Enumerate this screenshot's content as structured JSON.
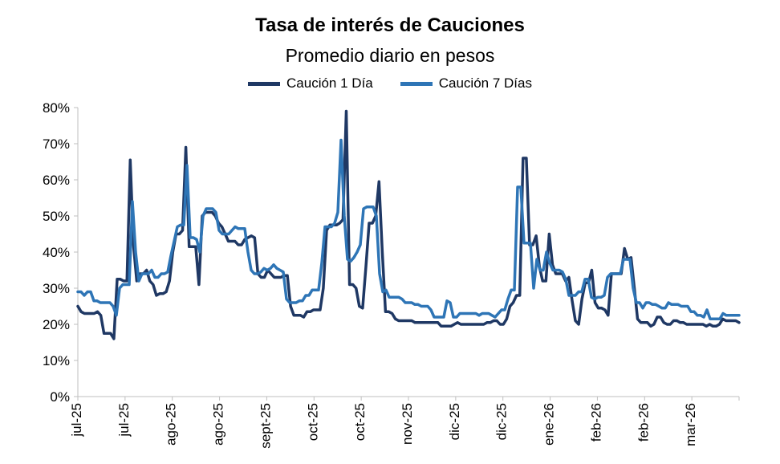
{
  "chart_data": {
    "type": "line",
    "title": "Tasa de interés de Cauciones",
    "subtitle": "Promedio diario en pesos",
    "xlabel": "",
    "ylabel": "",
    "ylim": [
      0,
      80
    ],
    "y_ticks": [
      "0%",
      "10%",
      "20%",
      "30%",
      "40%",
      "50%",
      "60%",
      "70%",
      "80%"
    ],
    "x_tick_labels": [
      "jul-25",
      "jul-25",
      "ago-25",
      "ago-25",
      "sept-25",
      "oct-25",
      "oct-25",
      "nov-25",
      "dic-25",
      "dic-25",
      "ene-26",
      "feb-26",
      "feb-26",
      "mar-26"
    ],
    "grid": false,
    "legend": "top-center",
    "series": [
      {
        "name": "Caución 1 Día",
        "color": "#1f3864",
        "values": [
          25,
          23.5,
          23,
          23,
          23,
          23,
          23.5,
          22.5,
          17.5,
          17.5,
          17.5,
          16,
          32.5,
          32.5,
          32,
          32,
          65.5,
          42,
          32,
          34,
          34,
          35,
          32,
          31,
          28,
          28.5,
          28.5,
          29,
          32,
          40,
          45,
          45,
          46,
          69,
          41.5,
          41.5,
          41.5,
          31,
          50,
          51,
          51,
          51,
          50,
          48,
          47,
          45,
          43,
          43,
          43,
          42,
          42,
          43.5,
          44,
          44.5,
          44,
          34,
          33,
          33,
          35,
          34,
          33,
          33,
          33,
          33.5,
          33.5,
          25,
          22.5,
          22.5,
          22.5,
          22,
          23.5,
          23.5,
          24,
          24,
          24,
          30,
          46,
          47.5,
          47.5,
          47.5,
          48,
          49,
          79,
          31,
          31,
          30,
          25,
          24.5,
          36,
          48,
          48,
          50,
          59.5,
          40,
          23.5,
          23.5,
          23,
          21.5,
          21,
          21,
          21,
          21,
          21,
          20.5,
          20.5,
          20.5,
          20.5,
          20.5,
          20.5,
          20.5,
          20.5,
          19.5,
          19.5,
          19.5,
          19.5,
          20,
          20.5,
          20,
          20,
          20,
          20,
          20,
          20,
          20,
          20,
          20.5,
          20.5,
          21,
          21,
          20,
          20,
          21.5,
          25,
          26,
          28,
          28,
          66,
          66,
          42,
          42,
          44.5,
          36,
          32,
          32,
          45,
          36.5,
          34,
          34,
          34,
          32,
          33,
          26.5,
          21,
          20,
          27,
          31.5,
          31.5,
          35,
          26,
          24.5,
          24.5,
          24,
          22.5,
          34,
          34,
          34,
          34,
          41,
          38,
          38.5,
          30,
          21.5,
          20.5,
          20.5,
          20.5,
          19.5,
          20,
          22,
          22,
          20.5,
          20,
          20,
          21,
          21,
          20.5,
          20.5,
          20,
          20,
          20,
          20,
          20,
          20,
          19.5,
          20,
          19.5,
          19.5,
          20,
          21.5,
          21,
          21,
          21,
          21,
          20.5
        ],
        "values_note": ""
      },
      {
        "name": "Caución 7 Días",
        "color": "#2e75b6",
        "values": [
          29,
          29,
          28,
          29,
          29,
          26.5,
          26.5,
          26,
          26,
          26,
          26,
          25,
          22.5,
          30,
          31,
          31,
          31,
          54,
          40,
          32,
          34,
          34,
          34,
          35,
          33,
          33,
          34,
          34,
          34.5,
          39,
          43,
          47,
          47.5,
          47.5,
          64,
          44,
          44,
          43.5,
          40,
          50,
          52,
          52,
          52,
          51,
          46,
          45,
          45,
          45,
          46,
          47,
          46.5,
          46.5,
          46.5,
          40,
          35,
          34,
          34,
          34.5,
          35.5,
          35,
          35.5,
          36.5,
          35.5,
          35,
          34.5,
          27,
          26,
          26,
          26,
          26.5,
          26.5,
          28,
          28,
          29.5,
          29.5,
          29.5,
          37,
          47,
          47,
          47,
          48,
          51,
          71,
          50,
          38,
          37.5,
          38.5,
          40,
          42,
          52,
          52.5,
          52.5,
          52.5,
          50,
          34,
          29,
          29.5,
          27.5,
          27.5,
          27.5,
          27.5,
          27,
          26,
          26,
          26,
          25.5,
          25.5,
          25,
          25,
          25,
          24,
          22,
          22,
          22,
          22,
          26.5,
          26,
          22,
          22,
          23,
          23,
          23,
          23,
          23,
          23,
          22.5,
          23,
          23,
          23,
          22.5,
          22,
          23,
          24,
          24,
          27,
          29.5,
          29.5,
          58,
          58,
          42.5,
          42.5,
          42.5,
          30,
          38,
          35,
          35,
          40,
          37,
          35,
          35,
          35,
          34.5,
          32.5,
          28,
          28,
          28,
          29,
          29,
          32.5,
          32.5,
          27.5,
          27,
          27.5,
          27.5,
          28,
          33,
          34,
          34,
          34,
          34,
          38,
          38,
          38,
          30,
          26,
          26,
          24.5,
          26,
          26,
          25.5,
          25.5,
          25,
          24.5,
          24.5,
          26,
          25.5,
          25.5,
          25.5,
          25,
          25,
          25,
          23.5,
          23.5,
          22.5,
          22.5,
          22,
          24,
          21.5,
          21.5,
          21.5,
          21.5,
          23,
          22.5,
          22.5,
          22.5,
          22.5,
          22.5
        ]
      }
    ]
  }
}
